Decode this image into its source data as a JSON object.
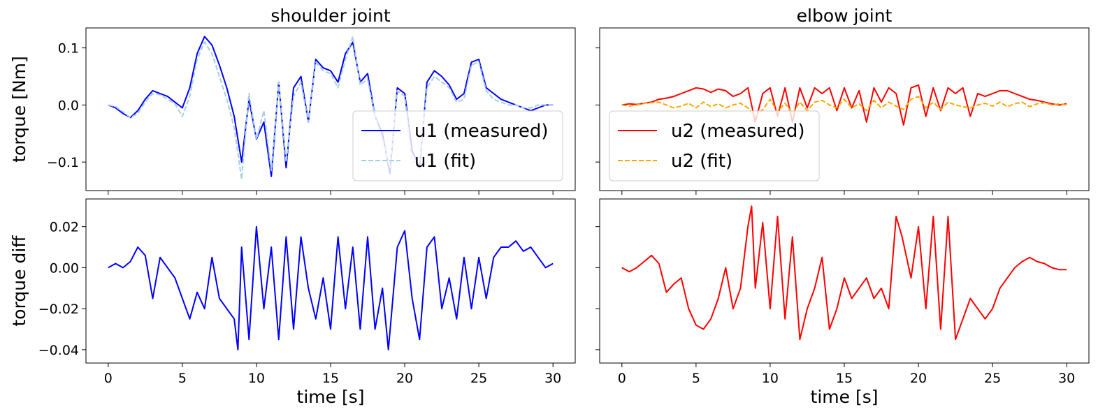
{
  "chart_data": [
    {
      "type": "line",
      "panel": "top-left",
      "title": "shoulder joint",
      "ylabel": "torque [Nm]",
      "xlabel": "",
      "xlim": [
        -1.5,
        31.5
      ],
      "ylim": [
        -0.15,
        0.135
      ],
      "xticks": [
        0,
        5,
        10,
        15,
        20,
        25,
        30
      ],
      "yticks": [
        -0.1,
        0.0,
        0.1
      ],
      "ytick_labels": [
        "−0.1",
        "0.0",
        "0.1"
      ],
      "show_xtick_labels": false,
      "legend": {
        "placement": "lower-right",
        "entries": [
          "u1 (measured)",
          "u1 (fit)"
        ]
      },
      "x": [
        0,
        0.5,
        1,
        1.5,
        2,
        2.5,
        3,
        3.5,
        4,
        4.5,
        5,
        5.5,
        6,
        6.5,
        7,
        7.5,
        8,
        8.5,
        9,
        9.5,
        10,
        10.5,
        11,
        11.5,
        12,
        12.5,
        13,
        13.5,
        14,
        14.5,
        15,
        15.5,
        16,
        16.5,
        17,
        17.5,
        18,
        18.5,
        19,
        19.5,
        20,
        20.5,
        21,
        21.5,
        22,
        22.5,
        23,
        23.5,
        24,
        24.5,
        25,
        25.5,
        26,
        26.5,
        27,
        27.5,
        28,
        28.5,
        29,
        29.5,
        30
      ],
      "series": [
        {
          "name": "u1 (measured)",
          "color": "#0000ff",
          "dash": "solid",
          "values": [
            0,
            -0.005,
            -0.015,
            -0.022,
            -0.01,
            0.01,
            0.025,
            0.02,
            0.015,
            0.005,
            -0.005,
            0.03,
            0.09,
            0.12,
            0.105,
            0.07,
            0.03,
            -0.02,
            -0.1,
            0.01,
            -0.06,
            -0.03,
            -0.125,
            0.04,
            -0.11,
            0.03,
            0.05,
            -0.03,
            0.08,
            0.065,
            0.06,
            0.04,
            0.09,
            0.11,
            0.04,
            0.055,
            -0.02,
            -0.05,
            -0.12,
            0.03,
            0.02,
            -0.08,
            -0.11,
            0.04,
            0.06,
            0.05,
            0.035,
            0.01,
            0.02,
            0.075,
            0.08,
            0.03,
            0.02,
            0.01,
            0.005,
            0,
            -0.005,
            -0.01,
            -0.005,
            0,
            0
          ]
        },
        {
          "name": "u1 (fit)",
          "color": "#a6cee3",
          "dash": "dashed",
          "values": [
            0,
            -0.003,
            -0.012,
            -0.022,
            -0.015,
            0.005,
            0.02,
            0.018,
            0.01,
            0.002,
            -0.02,
            0.015,
            0.08,
            0.11,
            0.09,
            0.05,
            0.01,
            -0.04,
            -0.13,
            0.02,
            -0.06,
            -0.01,
            -0.115,
            0.04,
            -0.1,
            0.015,
            0.04,
            -0.03,
            0.075,
            0.06,
            0.055,
            0.03,
            0.08,
            0.12,
            0.035,
            0.045,
            -0.02,
            -0.06,
            -0.11,
            0.025,
            0.015,
            -0.1,
            -0.1,
            0.03,
            0.05,
            0.04,
            0.03,
            0.005,
            0.01,
            0.07,
            0.075,
            0.025,
            0.01,
            0.005,
            0,
            0,
            -0.005,
            -0.005,
            0,
            0,
            0
          ]
        }
      ]
    },
    {
      "type": "line",
      "panel": "top-right",
      "title": "elbow joint",
      "ylabel": "",
      "xlabel": "",
      "xlim": [
        -1.5,
        31.5
      ],
      "ylim": [
        -0.15,
        0.135
      ],
      "xticks": [
        0,
        5,
        10,
        15,
        20,
        25,
        30
      ],
      "show_xtick_labels": false,
      "show_ytick_labels": false,
      "legend": {
        "placement": "lower-left",
        "entries": [
          "u2 (measured)",
          "u2 (fit)"
        ]
      },
      "x": [
        0,
        0.5,
        1,
        1.5,
        2,
        2.5,
        3,
        3.5,
        4,
        4.5,
        5,
        5.5,
        6,
        6.5,
        7,
        7.5,
        8,
        8.5,
        9,
        9.5,
        10,
        10.5,
        11,
        11.5,
        12,
        12.5,
        13,
        13.5,
        14,
        14.5,
        15,
        15.5,
        16,
        16.5,
        17,
        17.5,
        18,
        18.5,
        19,
        19.5,
        20,
        20.5,
        21,
        21.5,
        22,
        22.5,
        23,
        23.5,
        24,
        24.5,
        25,
        25.5,
        26,
        26.5,
        27,
        27.5,
        28,
        28.5,
        29,
        29.5,
        30
      ],
      "series": [
        {
          "name": "u2 (measured)",
          "color": "#ff0000",
          "dash": "solid",
          "values": [
            0,
            0.002,
            0.001,
            0.003,
            0.005,
            0.01,
            0.012,
            0.015,
            0.02,
            0.025,
            0.03,
            0.028,
            0.022,
            0.028,
            0.025,
            0.015,
            0.02,
            0.03,
            -0.03,
            0.02,
            0.03,
            -0.02,
            0.03,
            -0.03,
            0.03,
            -0.005,
            0.03,
            0.02,
            0.03,
            -0.01,
            0.03,
            -0.005,
            0.025,
            -0.03,
            0.03,
            0.005,
            0.03,
            0.02,
            -0.035,
            0.03,
            0.035,
            -0.02,
            0.03,
            -0.01,
            0.03,
            0.02,
            0.03,
            -0.02,
            0.02,
            0.015,
            0.02,
            0.025,
            0.025,
            0.02,
            0.015,
            0.01,
            0.008,
            0.005,
            0.002,
            0,
            0.002
          ]
        },
        {
          "name": "u2 (fit)",
          "color": "#ffa500",
          "dash": "dashed",
          "values": [
            0,
            -0.002,
            0,
            0.003,
            0.004,
            0.005,
            0,
            -0.005,
            -0.002,
            0.003,
            -0.005,
            0.005,
            -0.003,
            0.002,
            -0.005,
            0,
            0.003,
            -0.005,
            -0.02,
            -0.008,
            0.01,
            -0.012,
            0.003,
            -0.015,
            0.005,
            -0.01,
            0.005,
            0.008,
            0,
            -0.005,
            0.01,
            -0.005,
            0.002,
            -0.01,
            0.008,
            -0.005,
            0.005,
            -0.002,
            -0.008,
            0.01,
            0.015,
            -0.005,
            0.005,
            -0.008,
            0.005,
            0,
            -0.003,
            -0.005,
            0,
            0.003,
            -0.002,
            0.005,
            -0.003,
            0.002,
            0.005,
            -0.003,
            0.002,
            0.004,
            0,
            0.002,
            0
          ]
        }
      ]
    },
    {
      "type": "line",
      "panel": "bottom-left",
      "title": "",
      "ylabel": "torque diff",
      "xlabel": "time [s]",
      "xlim": [
        -1.5,
        31.5
      ],
      "ylim": [
        -0.0465,
        0.0335
      ],
      "xticks": [
        0,
        5,
        10,
        15,
        20,
        25,
        30
      ],
      "yticks": [
        -0.04,
        -0.02,
        0.0,
        0.02
      ],
      "ytick_labels": [
        "−0.04",
        "−0.02",
        "0.00",
        "0.02"
      ],
      "x": [
        0,
        0.5,
        1,
        1.5,
        2,
        2.5,
        3,
        3.5,
        4,
        4.5,
        5,
        5.5,
        6,
        6.5,
        7,
        7.5,
        8,
        8.5,
        8.75,
        9,
        9.5,
        10,
        10.5,
        11,
        11.5,
        12,
        12.5,
        13,
        13.5,
        14,
        14.5,
        15,
        15.5,
        16,
        16.5,
        17,
        17.5,
        18,
        18.5,
        18.9,
        19.5,
        20,
        20.5,
        21,
        21.5,
        22,
        22.5,
        23,
        23.5,
        24,
        24.5,
        25,
        25.5,
        26,
        26.5,
        27,
        27.5,
        28,
        28.5,
        29,
        29.5,
        30
      ],
      "series": [
        {
          "name": "",
          "color": "#0000ff",
          "dash": "solid",
          "values": [
            0,
            0.002,
            0,
            0.003,
            0.01,
            0.006,
            -0.015,
            0.005,
            0,
            -0.005,
            -0.015,
            -0.025,
            -0.012,
            -0.02,
            0.005,
            -0.015,
            -0.02,
            -0.025,
            -0.04,
            0.01,
            -0.035,
            0.02,
            -0.02,
            0.01,
            -0.035,
            0.015,
            -0.03,
            0.015,
            -0.01,
            -0.025,
            -0.005,
            -0.03,
            0.015,
            -0.02,
            0.01,
            -0.03,
            0.015,
            -0.03,
            -0.01,
            -0.04,
            0.01,
            0.018,
            -0.015,
            -0.035,
            0.01,
            0.015,
            -0.02,
            -0.005,
            -0.025,
            0.005,
            -0.02,
            0.005,
            -0.015,
            0.005,
            0.01,
            0.01,
            0.013,
            0.008,
            0.01,
            0.005,
            0,
            0.002
          ]
        }
      ]
    },
    {
      "type": "line",
      "panel": "bottom-right",
      "title": "",
      "ylabel": "",
      "xlabel": "time [s]",
      "xlim": [
        -1.5,
        31.5
      ],
      "ylim": [
        -0.0465,
        0.0335
      ],
      "xticks": [
        0,
        5,
        10,
        15,
        20,
        25,
        30
      ],
      "show_ytick_labels": false,
      "x": [
        0,
        0.5,
        1,
        1.5,
        2,
        2.5,
        3,
        3.5,
        4,
        4.5,
        5,
        5.5,
        6,
        6.5,
        7,
        7.5,
        8,
        8.5,
        8.75,
        9,
        9.5,
        10,
        10.5,
        11,
        11.5,
        12,
        12.5,
        13,
        13.5,
        14,
        14.5,
        15,
        15.5,
        16,
        16.5,
        17,
        17.5,
        18,
        18.5,
        18.9,
        19.5,
        20,
        20.5,
        21,
        21.5,
        22,
        22.5,
        23,
        23.5,
        24,
        24.5,
        25,
        25.5,
        26,
        26.5,
        27,
        27.5,
        28,
        28.5,
        29,
        29.5,
        30
      ],
      "series": [
        {
          "name": "",
          "color": "#ff0000",
          "dash": "solid",
          "values": [
            0,
            -0.002,
            0,
            0.003,
            0.006,
            0.002,
            -0.012,
            -0.008,
            -0.005,
            -0.02,
            -0.028,
            -0.03,
            -0.025,
            -0.015,
            0,
            -0.02,
            -0.01,
            0.02,
            0.03,
            -0.01,
            0.022,
            -0.02,
            0.025,
            -0.025,
            0.015,
            -0.035,
            -0.02,
            -0.01,
            0.005,
            -0.03,
            -0.02,
            -0.005,
            -0.015,
            -0.01,
            -0.005,
            -0.015,
            -0.01,
            -0.02,
            0.025,
            0.015,
            -0.005,
            0.02,
            -0.02,
            0.025,
            -0.03,
            0.025,
            -0.035,
            -0.025,
            -0.015,
            -0.02,
            -0.025,
            -0.02,
            -0.01,
            -0.005,
            0,
            0.003,
            0.005,
            0.003,
            0.002,
            0,
            -0.001,
            -0.001
          ]
        }
      ]
    }
  ]
}
